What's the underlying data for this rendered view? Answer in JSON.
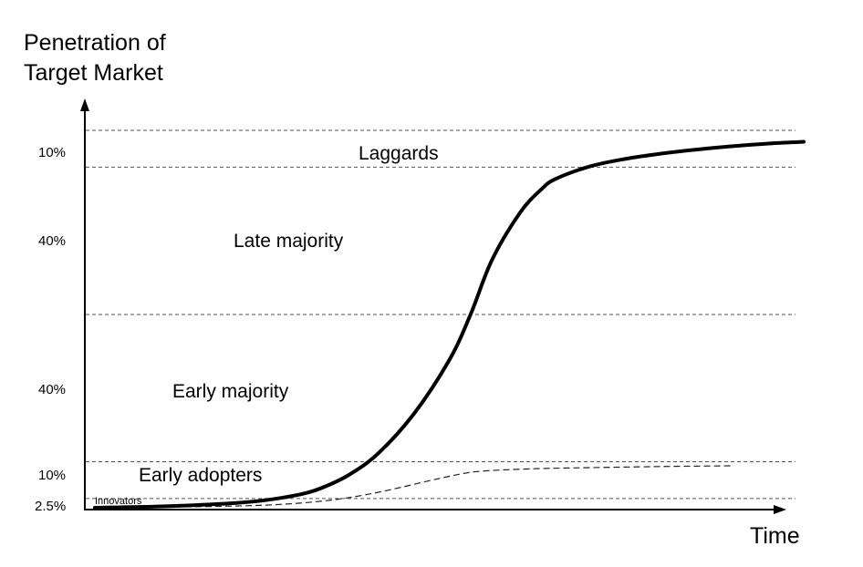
{
  "chart_data": {
    "type": "line",
    "ylabel_lines": [
      "Penetration of",
      "Target Market"
    ],
    "xlabel": "Time",
    "segments": [
      {
        "name": "Innovators",
        "share_label": "2.5%",
        "share": 2.5
      },
      {
        "name": "Early adopters",
        "share_label": "10%",
        "share": 10
      },
      {
        "name": "Early majority",
        "share_label": "40%",
        "share": 40
      },
      {
        "name": "Late majority",
        "share_label": "40%",
        "share": 40
      },
      {
        "name": "Laggards",
        "share_label": "10%",
        "share": 10
      }
    ],
    "ylim": [
      0,
      102.5
    ],
    "xlim": [
      0,
      100
    ],
    "series": [
      {
        "style": "solid-thick",
        "x": [
          0,
          10,
          20,
          25,
          30,
          33,
          36,
          40,
          45,
          50,
          53,
          56,
          60,
          63,
          65,
          70,
          75,
          80,
          85,
          90,
          95,
          100
        ],
        "y": [
          0,
          0.4,
          1.3,
          2.3,
          4.1,
          6.2,
          9.1,
          14.8,
          25.5,
          40.1,
          52.5,
          67.2,
          80.2,
          86.5,
          89.3,
          92.8,
          94.8,
          96.2,
          97.3,
          98.2,
          98.9,
          99.4
        ]
      },
      {
        "style": "dashed-thin",
        "x": [
          0,
          15,
          25,
          33,
          40,
          48,
          52,
          55,
          62,
          70,
          80,
          90
        ],
        "y": [
          0,
          0.3,
          0.8,
          2.0,
          4.2,
          7.7,
          9.3,
          10.0,
          10.6,
          10.9,
          11.2,
          11.4
        ]
      }
    ]
  }
}
